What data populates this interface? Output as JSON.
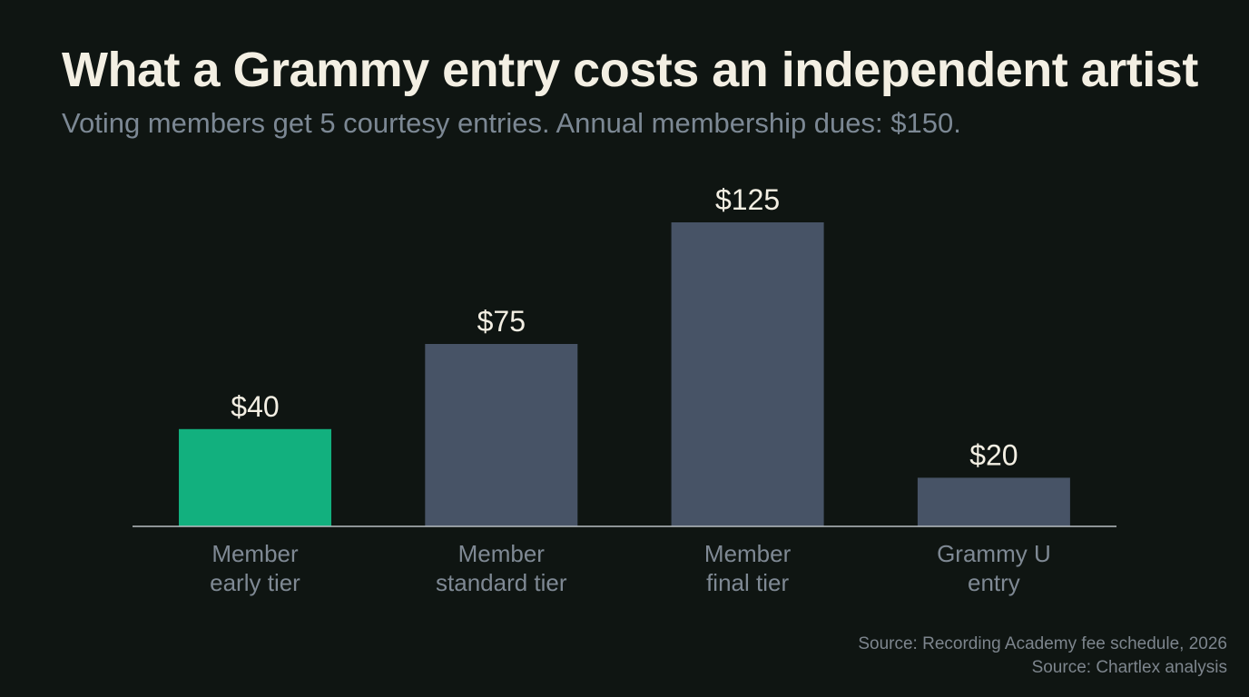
{
  "header": {
    "title": "What a Grammy entry costs an independent artist",
    "subtitle": "Voting members get 5 courtesy entries. Annual membership dues: $150."
  },
  "footer": {
    "sources": [
      "Source: Recording Academy fee schedule, 2026",
      "Source: Chartlex analysis"
    ]
  },
  "colors": {
    "highlight": "#12b07e",
    "bar": "#475366",
    "value_label": "#f3efe3",
    "category_label": "#7f8994",
    "baseline": "#b9bec2"
  },
  "chart_data": {
    "type": "bar",
    "categories": [
      [
        "Member",
        "early tier"
      ],
      [
        "Member",
        "standard tier"
      ],
      [
        "Member",
        "final tier"
      ],
      [
        "Grammy U",
        "entry"
      ]
    ],
    "values": [
      40,
      75,
      125,
      20
    ],
    "value_labels": [
      "$40",
      "$75",
      "$125",
      "$20"
    ],
    "highlight_index": 0,
    "ylim": [
      0,
      125
    ],
    "grid": false,
    "xlabel": "",
    "ylabel": ""
  }
}
